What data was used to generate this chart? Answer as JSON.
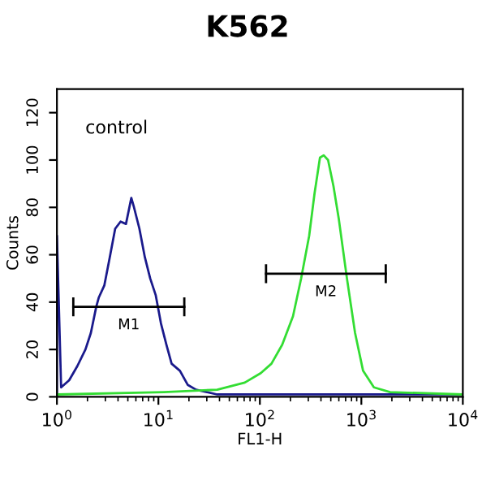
{
  "chart_data": {
    "type": "line",
    "title": "K562",
    "xlabel": "FL1-H",
    "ylabel": "Counts",
    "log": "x",
    "xlim": [
      1,
      10000
    ],
    "ylim": [
      0,
      130
    ],
    "xticks": [
      {
        "value": 1,
        "label": "10$^{0}$"
      },
      {
        "value": 10,
        "label": "10$^{1}$"
      },
      {
        "value": 100,
        "label": "10$^{2}$"
      },
      {
        "value": 1000,
        "label": "10$^{3}$"
      },
      {
        "value": 10000,
        "label": "10$^{4}$"
      }
    ],
    "yticks": [
      0,
      20,
      40,
      60,
      80,
      100,
      120
    ],
    "grid": false,
    "legend": false,
    "marker": "none",
    "line_style": "solid",
    "annotations": [
      "control"
    ],
    "series": [
      {
        "color": "#1a1a8c",
        "x": [
          1,
          1,
          1.1,
          1.32,
          1.59,
          1.91,
          2.16,
          2.44,
          2.59,
          2.93,
          3.32,
          3.75,
          4.24,
          4.79,
          5.41,
          5.75,
          6.5,
          7.35,
          8.3,
          9.4,
          10.6,
          12,
          13.5,
          16.3,
          19.5,
          23.5,
          38,
          71,
          130,
          440,
          1500,
          10000
        ],
        "values": [
          0,
          68,
          4,
          7,
          13,
          20,
          27,
          38,
          42,
          47,
          59,
          71,
          74,
          73,
          84,
          80,
          71,
          59,
          50,
          43,
          31,
          22,
          14,
          11,
          5,
          3,
          1,
          1,
          1,
          1,
          1,
          1
        ]
      },
      {
        "color": "#33dd33",
        "x": [
          1,
          11.3,
          38,
          71,
          102,
          130,
          166,
          212,
          255,
          306,
          346,
          391,
          426,
          470,
          531,
          600,
          721,
          867,
          1040,
          1330,
          1920,
          10000
        ],
        "values": [
          1,
          2,
          3,
          6,
          10,
          14,
          22,
          34,
          50,
          68,
          86,
          101,
          102,
          100,
          89,
          75,
          50,
          27,
          11,
          4,
          2,
          1
        ]
      },
      {
        "name": "M1",
        "color": "#000000",
        "x": [
          1.45,
          18
        ],
        "values": [
          38,
          38
        ],
        "errors": [
          4,
          4
        ]
      },
      {
        "name": "M2",
        "color": "#000000",
        "x": [
          115,
          1740
        ],
        "values": [
          52,
          52
        ],
        "errors": [
          4,
          4
        ]
      }
    ]
  }
}
